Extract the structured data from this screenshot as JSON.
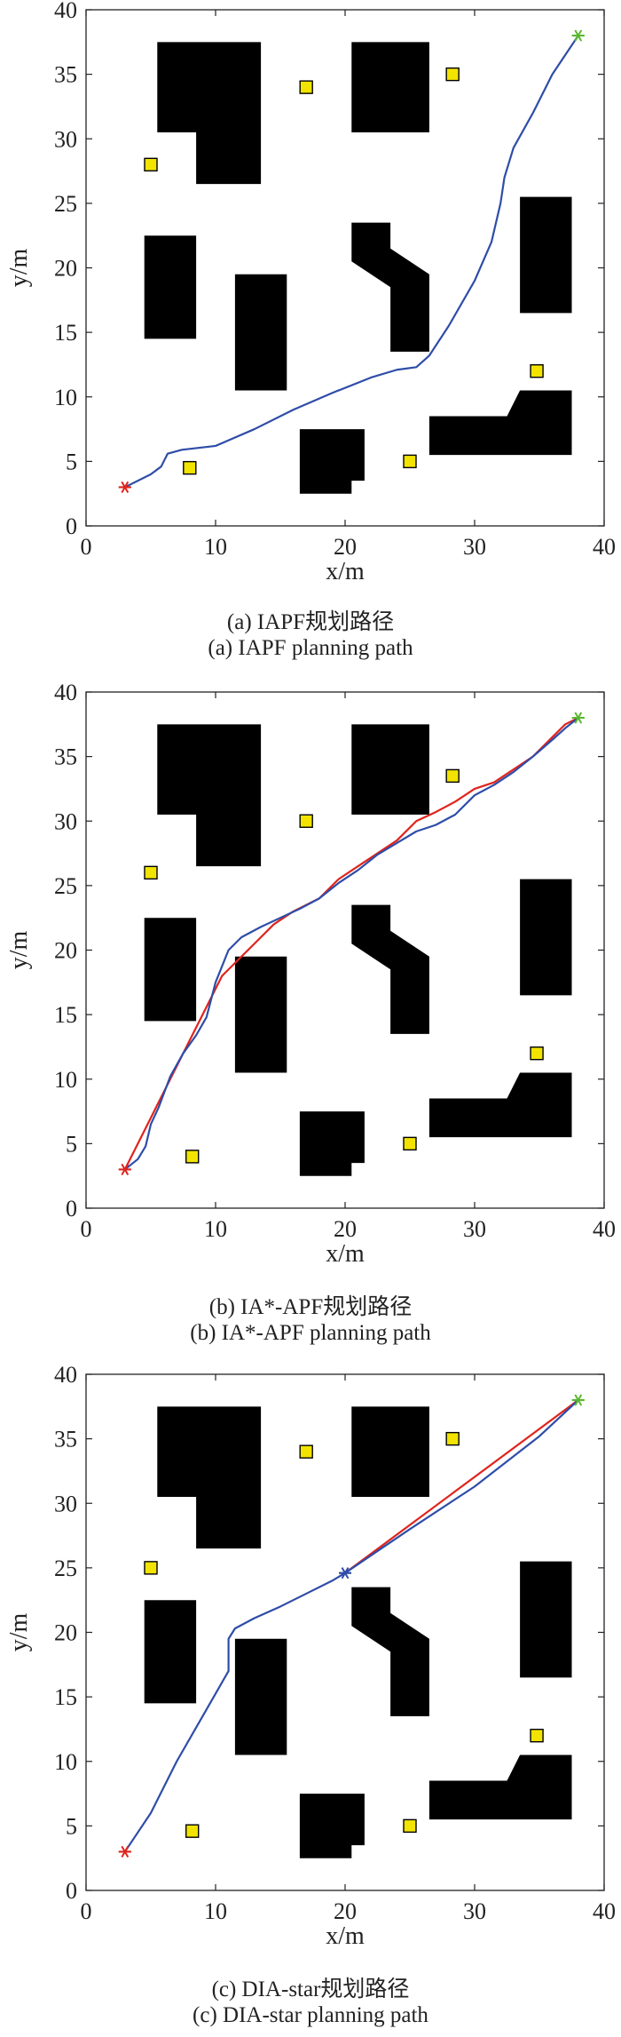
{
  "chart_data": [
    {
      "type": "line",
      "caption_cn": "(a) IAPF规划路径",
      "caption_en": "(a) IAPF planning path",
      "xlabel": "x/m",
      "ylabel": "y/m",
      "xlim": [
        0,
        40
      ],
      "ylim": [
        0,
        40
      ],
      "xticks": [
        "0",
        "10",
        "20",
        "30",
        "40"
      ],
      "yticks": [
        "0",
        "5",
        "10",
        "15",
        "20",
        "25",
        "30",
        "35",
        "40"
      ],
      "start": [
        3,
        3
      ],
      "goal": [
        38,
        38
      ],
      "obstacles": [
        [
          [
            5.5,
            37.5
          ],
          [
            13.5,
            37.5
          ],
          [
            13.5,
            26.5
          ],
          [
            8.5,
            26.5
          ],
          [
            8.5,
            30.5
          ],
          [
            5.5,
            30.5
          ]
        ],
        [
          [
            20.5,
            37.5
          ],
          [
            26.5,
            37.5
          ],
          [
            26.5,
            30.5
          ],
          [
            20.5,
            30.5
          ]
        ],
        [
          [
            4.5,
            22.5
          ],
          [
            8.5,
            22.5
          ],
          [
            8.5,
            14.5
          ],
          [
            4.5,
            14.5
          ]
        ],
        [
          [
            11.5,
            19.5
          ],
          [
            15.5,
            19.5
          ],
          [
            15.5,
            10.5
          ],
          [
            11.5,
            10.5
          ]
        ],
        [
          [
            20.5,
            23.5
          ],
          [
            23.5,
            23.5
          ],
          [
            23.5,
            21.5
          ],
          [
            26.5,
            19.5
          ],
          [
            26.5,
            13.5
          ],
          [
            23.5,
            13.5
          ],
          [
            23.5,
            18.5
          ],
          [
            20.5,
            20.5
          ]
        ],
        [
          [
            33.5,
            25.5
          ],
          [
            37.5,
            25.5
          ],
          [
            37.5,
            16.5
          ],
          [
            33.5,
            16.5
          ]
        ],
        [
          [
            16.5,
            7.5
          ],
          [
            21.5,
            7.5
          ],
          [
            21.5,
            3.5
          ],
          [
            20.5,
            3.5
          ],
          [
            20.5,
            2.5
          ],
          [
            16.5,
            2.5
          ]
        ],
        [
          [
            26.5,
            8.5
          ],
          [
            32.5,
            8.5
          ],
          [
            33.5,
            10.5
          ],
          [
            37.5,
            10.5
          ],
          [
            37.5,
            5.5
          ],
          [
            26.5,
            5.5
          ]
        ]
      ],
      "markers": [
        [
          5,
          28
        ],
        [
          17,
          34
        ],
        [
          28.3,
          35
        ],
        [
          8,
          4.5
        ],
        [
          25,
          5
        ],
        [
          34.8,
          12
        ]
      ],
      "series": [
        {
          "color": "#2e4da8",
          "points": [
            [
              3,
              3
            ],
            [
              5,
              4
            ],
            [
              5.8,
              4.6
            ],
            [
              6.3,
              5.6
            ],
            [
              7.4,
              5.9
            ],
            [
              10,
              6.2
            ],
            [
              13,
              7.5
            ],
            [
              16,
              9
            ],
            [
              19,
              10.3
            ],
            [
              22,
              11.5
            ],
            [
              24,
              12.1
            ],
            [
              25.5,
              12.3
            ],
            [
              26.5,
              13.2
            ],
            [
              28,
              15.5
            ],
            [
              30,
              19
            ],
            [
              31.3,
              22
            ],
            [
              32,
              25
            ],
            [
              32.3,
              27
            ],
            [
              33,
              29.3
            ],
            [
              34.5,
              32
            ],
            [
              36,
              35
            ],
            [
              38,
              38
            ]
          ]
        }
      ]
    },
    {
      "type": "line",
      "caption_cn": "(b) IA*-APF规划路径",
      "caption_en": "(b) IA*-APF planning path",
      "xlabel": "x/m",
      "ylabel": "y/m",
      "xlim": [
        0,
        40
      ],
      "ylim": [
        0,
        40
      ],
      "xticks": [
        "0",
        "10",
        "20",
        "30",
        "40"
      ],
      "yticks": [
        "0",
        "5",
        "10",
        "15",
        "20",
        "25",
        "30",
        "35",
        "40"
      ],
      "start": [
        3,
        3
      ],
      "goal": [
        38,
        38
      ],
      "obstacles": [
        [
          [
            5.5,
            37.5
          ],
          [
            13.5,
            37.5
          ],
          [
            13.5,
            26.5
          ],
          [
            8.5,
            26.5
          ],
          [
            8.5,
            30.5
          ],
          [
            5.5,
            30.5
          ]
        ],
        [
          [
            20.5,
            37.5
          ],
          [
            26.5,
            37.5
          ],
          [
            26.5,
            30.5
          ],
          [
            20.5,
            30.5
          ]
        ],
        [
          [
            4.5,
            22.5
          ],
          [
            8.5,
            22.5
          ],
          [
            8.5,
            14.5
          ],
          [
            4.5,
            14.5
          ]
        ],
        [
          [
            11.5,
            19.5
          ],
          [
            15.5,
            19.5
          ],
          [
            15.5,
            10.5
          ],
          [
            11.5,
            10.5
          ]
        ],
        [
          [
            20.5,
            23.5
          ],
          [
            23.5,
            23.5
          ],
          [
            23.5,
            21.5
          ],
          [
            26.5,
            19.5
          ],
          [
            26.5,
            13.5
          ],
          [
            23.5,
            13.5
          ],
          [
            23.5,
            18.5
          ],
          [
            20.5,
            20.5
          ]
        ],
        [
          [
            33.5,
            25.5
          ],
          [
            37.5,
            25.5
          ],
          [
            37.5,
            16.5
          ],
          [
            33.5,
            16.5
          ]
        ],
        [
          [
            16.5,
            7.5
          ],
          [
            21.5,
            7.5
          ],
          [
            21.5,
            3.5
          ],
          [
            20.5,
            3.5
          ],
          [
            20.5,
            2.5
          ],
          [
            16.5,
            2.5
          ]
        ],
        [
          [
            26.5,
            8.5
          ],
          [
            32.5,
            8.5
          ],
          [
            33.5,
            10.5
          ],
          [
            37.5,
            10.5
          ],
          [
            37.5,
            5.5
          ],
          [
            26.5,
            5.5
          ]
        ]
      ],
      "markers": [
        [
          5,
          26
        ],
        [
          17,
          30
        ],
        [
          28.3,
          33.5
        ],
        [
          8.2,
          4
        ],
        [
          25,
          5
        ],
        [
          34.8,
          12
        ]
      ],
      "series": [
        {
          "color": "#e0231c",
          "points": [
            [
              3,
              3
            ],
            [
              4,
              5
            ],
            [
              5,
              7
            ],
            [
              6.5,
              10
            ],
            [
              8,
              13
            ],
            [
              9.5,
              16
            ],
            [
              10.5,
              18
            ],
            [
              12,
              19.5
            ],
            [
              13,
              20.5
            ],
            [
              14.5,
              22
            ],
            [
              16,
              23
            ],
            [
              18,
              24
            ],
            [
              19.5,
              25.5
            ],
            [
              21,
              26.5
            ],
            [
              22.5,
              27.5
            ],
            [
              24,
              28.5
            ],
            [
              25.5,
              30
            ],
            [
              27,
              30.7
            ],
            [
              28.5,
              31.5
            ],
            [
              30,
              32.5
            ],
            [
              31.5,
              33
            ],
            [
              33,
              34
            ],
            [
              34.5,
              35
            ],
            [
              36,
              36.5
            ],
            [
              37,
              37.5
            ],
            [
              38,
              38
            ]
          ]
        },
        {
          "color": "#2e4da8",
          "points": [
            [
              3,
              3
            ],
            [
              4,
              3.8
            ],
            [
              4.6,
              4.8
            ],
            [
              5,
              6.5
            ],
            [
              5.6,
              7.8
            ],
            [
              6.5,
              10.2
            ],
            [
              7.5,
              12
            ],
            [
              8.5,
              13.4
            ],
            [
              9.3,
              14.8
            ],
            [
              10,
              17.5
            ],
            [
              11,
              20
            ],
            [
              12,
              21
            ],
            [
              13.5,
              21.8
            ],
            [
              15,
              22.5
            ],
            [
              16.5,
              23.2
            ],
            [
              18,
              24
            ],
            [
              19.5,
              25.2
            ],
            [
              21,
              26.2
            ],
            [
              22.5,
              27.4
            ],
            [
              24,
              28.3
            ],
            [
              25.5,
              29.2
            ],
            [
              27,
              29.7
            ],
            [
              28.5,
              30.5
            ],
            [
              30,
              32
            ],
            [
              31.5,
              32.8
            ],
            [
              33,
              33.8
            ],
            [
              34.5,
              35
            ],
            [
              36,
              36.3
            ],
            [
              37,
              37.2
            ],
            [
              38,
              38
            ]
          ]
        }
      ]
    },
    {
      "type": "line",
      "caption_cn": "(c) DIA-star规划路径",
      "caption_en": "(c) DIA-star planning path",
      "xlabel": "x/m",
      "ylabel": "y/m",
      "xlim": [
        0,
        40
      ],
      "ylim": [
        0,
        40
      ],
      "xticks": [
        "0",
        "10",
        "20",
        "30",
        "40"
      ],
      "yticks": [
        "0",
        "5",
        "10",
        "15",
        "20",
        "25",
        "30",
        "35",
        "40"
      ],
      "start": [
        3,
        3
      ],
      "goal": [
        38,
        38
      ],
      "waypoint": [
        20,
        24.6
      ],
      "obstacles": [
        [
          [
            5.5,
            37.5
          ],
          [
            13.5,
            37.5
          ],
          [
            13.5,
            26.5
          ],
          [
            8.5,
            26.5
          ],
          [
            8.5,
            30.5
          ],
          [
            5.5,
            30.5
          ]
        ],
        [
          [
            20.5,
            37.5
          ],
          [
            26.5,
            37.5
          ],
          [
            26.5,
            30.5
          ],
          [
            20.5,
            30.5
          ]
        ],
        [
          [
            4.5,
            22.5
          ],
          [
            8.5,
            22.5
          ],
          [
            8.5,
            14.5
          ],
          [
            4.5,
            14.5
          ]
        ],
        [
          [
            11.5,
            19.5
          ],
          [
            15.5,
            19.5
          ],
          [
            15.5,
            10.5
          ],
          [
            11.5,
            10.5
          ]
        ],
        [
          [
            20.5,
            23.5
          ],
          [
            23.5,
            23.5
          ],
          [
            23.5,
            21.5
          ],
          [
            26.5,
            19.5
          ],
          [
            26.5,
            13.5
          ],
          [
            23.5,
            13.5
          ],
          [
            23.5,
            18.5
          ],
          [
            20.5,
            20.5
          ]
        ],
        [
          [
            33.5,
            25.5
          ],
          [
            37.5,
            25.5
          ],
          [
            37.5,
            16.5
          ],
          [
            33.5,
            16.5
          ]
        ],
        [
          [
            16.5,
            7.5
          ],
          [
            21.5,
            7.5
          ],
          [
            21.5,
            3.5
          ],
          [
            20.5,
            3.5
          ],
          [
            20.5,
            2.5
          ],
          [
            16.5,
            2.5
          ]
        ],
        [
          [
            26.5,
            8.5
          ],
          [
            32.5,
            8.5
          ],
          [
            33.5,
            10.5
          ],
          [
            37.5,
            10.5
          ],
          [
            37.5,
            5.5
          ],
          [
            26.5,
            5.5
          ]
        ]
      ],
      "markers": [
        [
          5,
          25
        ],
        [
          17,
          34
        ],
        [
          28.3,
          35
        ],
        [
          8.2,
          4.6
        ],
        [
          25,
          5
        ],
        [
          34.8,
          12
        ]
      ],
      "series": [
        {
          "color": "#e0231c",
          "points": [
            [
              20,
              24.6
            ],
            [
              38,
              38
            ]
          ]
        },
        {
          "color": "#2e4da8",
          "points": [
            [
              3,
              3
            ],
            [
              5,
              6
            ],
            [
              7,
              10
            ],
            [
              9,
              13.5
            ],
            [
              11,
              17
            ],
            [
              11,
              19.5
            ],
            [
              11.5,
              20.3
            ],
            [
              13,
              21.1
            ],
            [
              15,
              22
            ],
            [
              17,
              23
            ],
            [
              19,
              24
            ],
            [
              20,
              24.6
            ],
            [
              25,
              28
            ],
            [
              30,
              31.3
            ],
            [
              35,
              35.2
            ],
            [
              38,
              38
            ]
          ]
        }
      ]
    }
  ]
}
